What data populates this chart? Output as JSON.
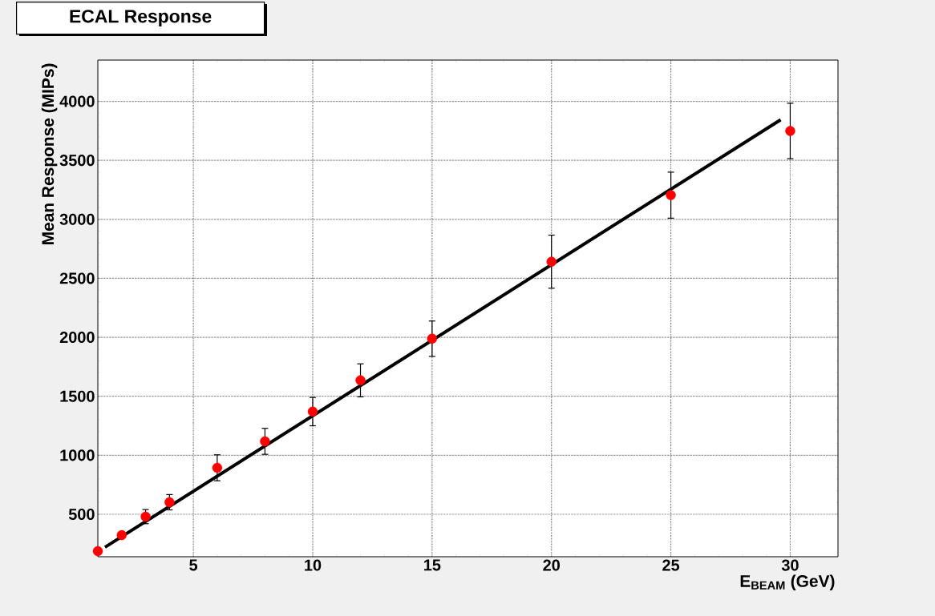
{
  "chart_data": {
    "type": "scatter",
    "title": "ECAL Response",
    "xlabel": "E$_{BEAM}$ (GeV)",
    "ylabel": "Mean Response (MIPs)",
    "xlim": [
      1,
      32
    ],
    "ylim": [
      140,
      4350
    ],
    "xticks": [
      5,
      10,
      15,
      20,
      25,
      30
    ],
    "yticks": [
      500,
      1000,
      1500,
      2000,
      2500,
      3000,
      3500,
      4000
    ],
    "grid": true,
    "series": [
      {
        "marker": "circle",
        "color": "#ff0000",
        "x": [
          1,
          2,
          3,
          4,
          6,
          8,
          10,
          12,
          15,
          20,
          25,
          30
        ],
        "values": [
          187,
          323,
          480,
          602,
          894,
          1118,
          1370,
          1635,
          1988,
          2641,
          3205,
          3749
        ],
        "errors": [
          null,
          null,
          60,
          65,
          110,
          110,
          120,
          140,
          150,
          225,
          195,
          235
        ]
      },
      {
        "type": "line",
        "marker": "none",
        "color": "#000000",
        "x": [
          1.3,
          29.6
        ],
        "values": [
          221,
          3844
        ]
      }
    ]
  }
}
